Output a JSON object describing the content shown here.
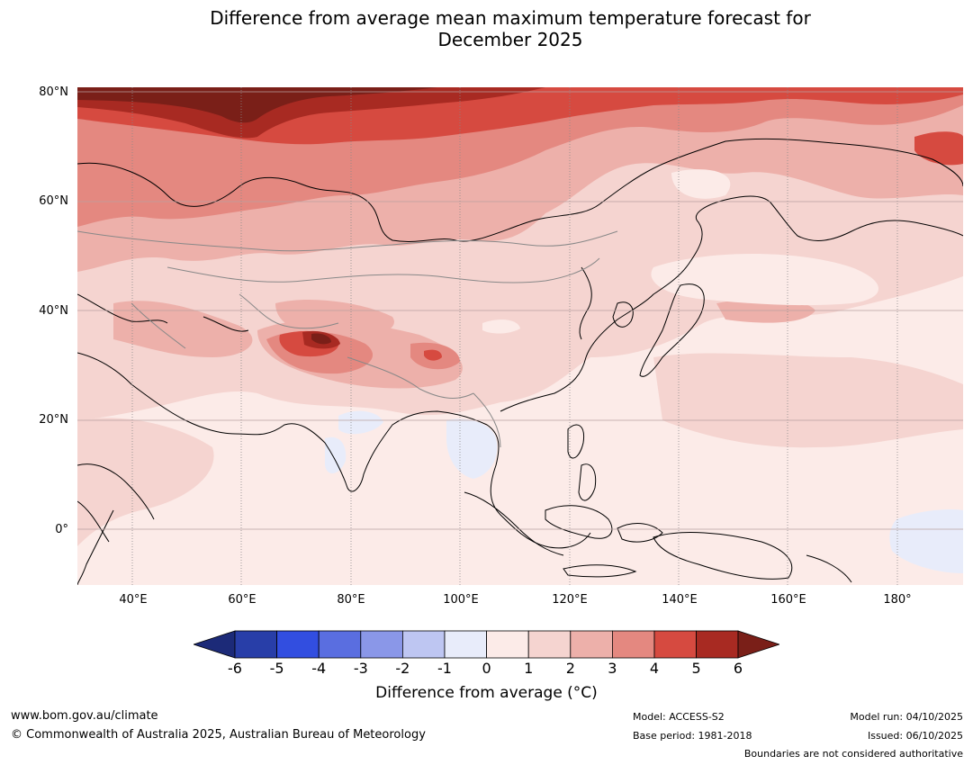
{
  "title": {
    "line1": "Difference from average mean maximum temperature forecast for",
    "line2": "December 2025"
  },
  "map": {
    "lat_labels": [
      "80°N",
      "60°N",
      "40°N",
      "20°N",
      "0°"
    ],
    "lon_labels": [
      "40°E",
      "60°E",
      "80°E",
      "100°E",
      "120°E",
      "140°E",
      "160°E",
      "180°"
    ],
    "icons": [
      "temperature-anomaly-map"
    ]
  },
  "colorbar": {
    "ticks": [
      "-6",
      "-5",
      "-4",
      "-3",
      "-2",
      "-1",
      "0",
      "1",
      "2",
      "3",
      "4",
      "5",
      "6"
    ],
    "colors": [
      "#1c2a78",
      "#283ea8",
      "#324ee0",
      "#5a6ee0",
      "#8a97e8",
      "#bec6f2",
      "#e8ecfa",
      "#fcebe8",
      "#f5d4d0",
      "#edb0aa",
      "#e48880",
      "#d64a40",
      "#a82a22",
      "#7a1f18"
    ],
    "label": "Difference from average (°C)"
  },
  "footer": {
    "website": "www.bom.gov.au/climate",
    "copyright": "© Commonwealth of Australia 2025, Australian Bureau of Meteorology",
    "model": "Model: ACCESS-S2",
    "base_period": "Base period: 1981-2018",
    "model_run": "Model run: 04/10/2025",
    "issued": "Issued: 06/10/2025",
    "boundaries": "Boundaries are not considered authoritative"
  }
}
